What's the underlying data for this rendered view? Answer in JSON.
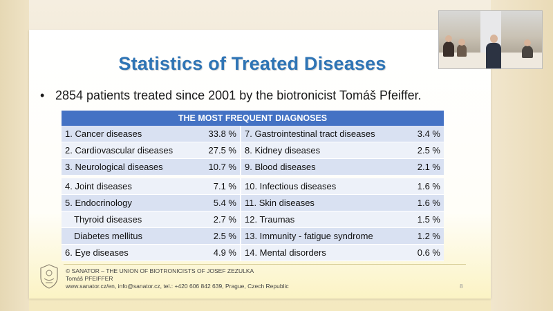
{
  "slide": {
    "title": "Statistics of Treated Diseases",
    "bullet": "2854 patients treated since 2001 by the biotronicist Tomáš Pfeiffer."
  },
  "table": {
    "header": "THE MOST FREQUENT DIAGNOSES",
    "rows": [
      {
        "left_label": "1. Cancer diseases",
        "left_value": "33.8 %",
        "right_label": "7. Gastrointestinal tract diseases",
        "right_value": "3.4 %"
      },
      {
        "left_label": "2. Cardiovascular diseases",
        "left_value": "27.5 %",
        "right_label": "8. Kidney diseases",
        "right_value": "2.5 %"
      },
      {
        "left_label": "3. Neurological diseases",
        "left_value": "10.7 %",
        "right_label": "9. Blood diseases",
        "right_value": "2.1 %"
      },
      {
        "left_label": "4. Joint diseases",
        "left_value": "7.1 %",
        "right_label": "10. Infectious diseases",
        "right_value": "1.6 %"
      },
      {
        "left_label": "5. Endocrinology",
        "left_value": "5.4 %",
        "right_label": "11. Skin diseases",
        "right_value": "1.6 %"
      },
      {
        "left_label": "Thyroid diseases",
        "left_value": "2.7 %",
        "right_label": "12. Traumas",
        "right_value": "1.5 %"
      },
      {
        "left_label": "Diabetes mellitus",
        "left_value": "2.5 %",
        "right_label": "13. Immunity - fatigue syndrome",
        "right_value": "1.2 %"
      },
      {
        "left_label": "6. Eye diseases",
        "left_value": "4.9 %",
        "right_label": "14. Mental disorders",
        "right_value": "0.6 %"
      }
    ]
  },
  "footer": {
    "line1": "© SANATOR – THE UNION OF BIOTRONICISTS OF JOSEF ZEZULKA",
    "line2": "Tomáš PFEIFFER",
    "line3": "www.sanator.cz/en, info@sanator.cz, tel.: +420 606 842 639, Prague, Czech Republic",
    "page_number": "8"
  },
  "colors": {
    "title": "#2e74b5",
    "table_header": "#4472c4",
    "row_odd": "#d9e1f2",
    "row_even": "#edf1f9"
  },
  "icons": {
    "logo": "sanator-emblem",
    "video": "speaker-video-thumbnail"
  }
}
